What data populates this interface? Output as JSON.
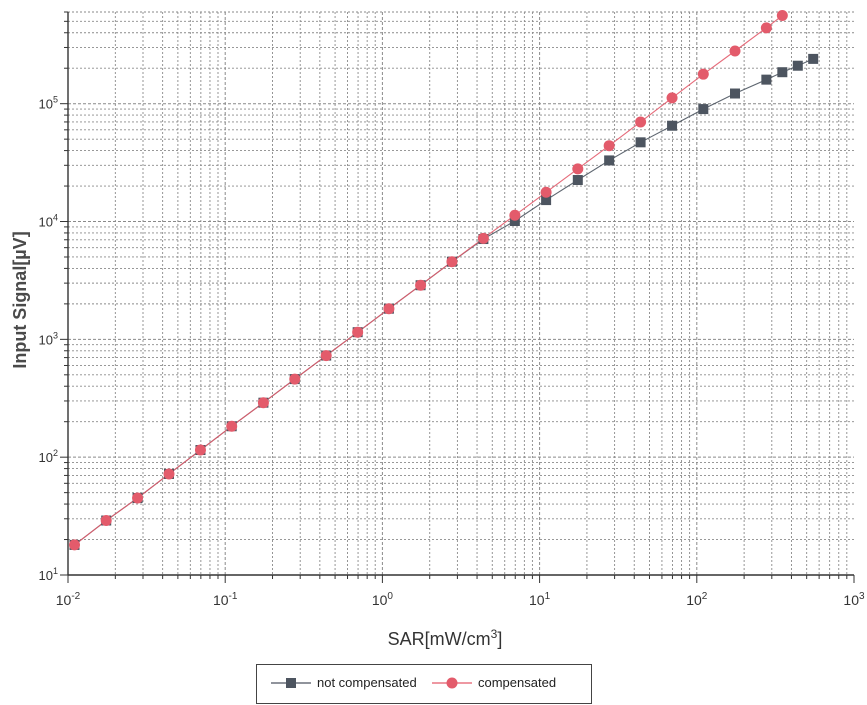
{
  "chart_data": {
    "type": "line",
    "x_scale": "log",
    "y_scale": "log",
    "xlim": [
      0.01,
      1000
    ],
    "ylim": [
      10,
      600000
    ],
    "xlabel": "SAR[mW/cm³]",
    "ylabel": "Input Signal[µV]",
    "title": "",
    "grid": true,
    "legend_position": "bottom",
    "x_ticks": [
      {
        "base": "10",
        "exp": "-2"
      },
      {
        "base": "10",
        "exp": "-1"
      },
      {
        "base": "10",
        "exp": "0"
      },
      {
        "base": "10",
        "exp": "1"
      },
      {
        "base": "10",
        "exp": "2"
      },
      {
        "base": "10",
        "exp": "3"
      }
    ],
    "y_ticks": [
      {
        "base": "10",
        "exp": "1"
      },
      {
        "base": "10",
        "exp": "2"
      },
      {
        "base": "10",
        "exp": "3"
      },
      {
        "base": "10",
        "exp": "4"
      },
      {
        "base": "10",
        "exp": "5"
      }
    ],
    "series": [
      {
        "name": "not compensated",
        "marker": "square",
        "color": "#4d5560",
        "x": [
          0.011,
          0.0175,
          0.0277,
          0.0439,
          0.0696,
          0.11,
          0.175,
          0.277,
          0.439,
          0.696,
          1.1,
          1.75,
          2.77,
          4.39,
          6.96,
          11.0,
          17.5,
          27.7,
          43.9,
          69.6,
          110,
          175,
          277,
          350,
          439,
          550
        ],
        "y": [
          18,
          29,
          45,
          72,
          115,
          183,
          290,
          460,
          728,
          1150,
          1820,
          2880,
          4560,
          7100,
          10100,
          15200,
          22500,
          33000,
          47000,
          65000,
          90000,
          122000,
          160000,
          185000,
          210000,
          240000
        ]
      },
      {
        "name": "compensated",
        "marker": "circle",
        "color": "#e35b6b",
        "x": [
          0.011,
          0.0175,
          0.0277,
          0.0439,
          0.0696,
          0.11,
          0.175,
          0.277,
          0.439,
          0.696,
          1.1,
          1.75,
          2.77,
          4.39,
          6.96,
          11.0,
          17.5,
          27.7,
          43.9,
          69.6,
          110,
          175,
          277,
          350
        ],
        "y": [
          18,
          29,
          45,
          72,
          115,
          183,
          290,
          460,
          728,
          1150,
          1820,
          2880,
          4560,
          7200,
          11300,
          17700,
          28000,
          44000,
          70000,
          112000,
          178000,
          280000,
          440000,
          560000
        ]
      }
    ]
  },
  "colors": {
    "grid": "#8a8a8a",
    "axis": "#333333",
    "line": "#8a8f96"
  }
}
